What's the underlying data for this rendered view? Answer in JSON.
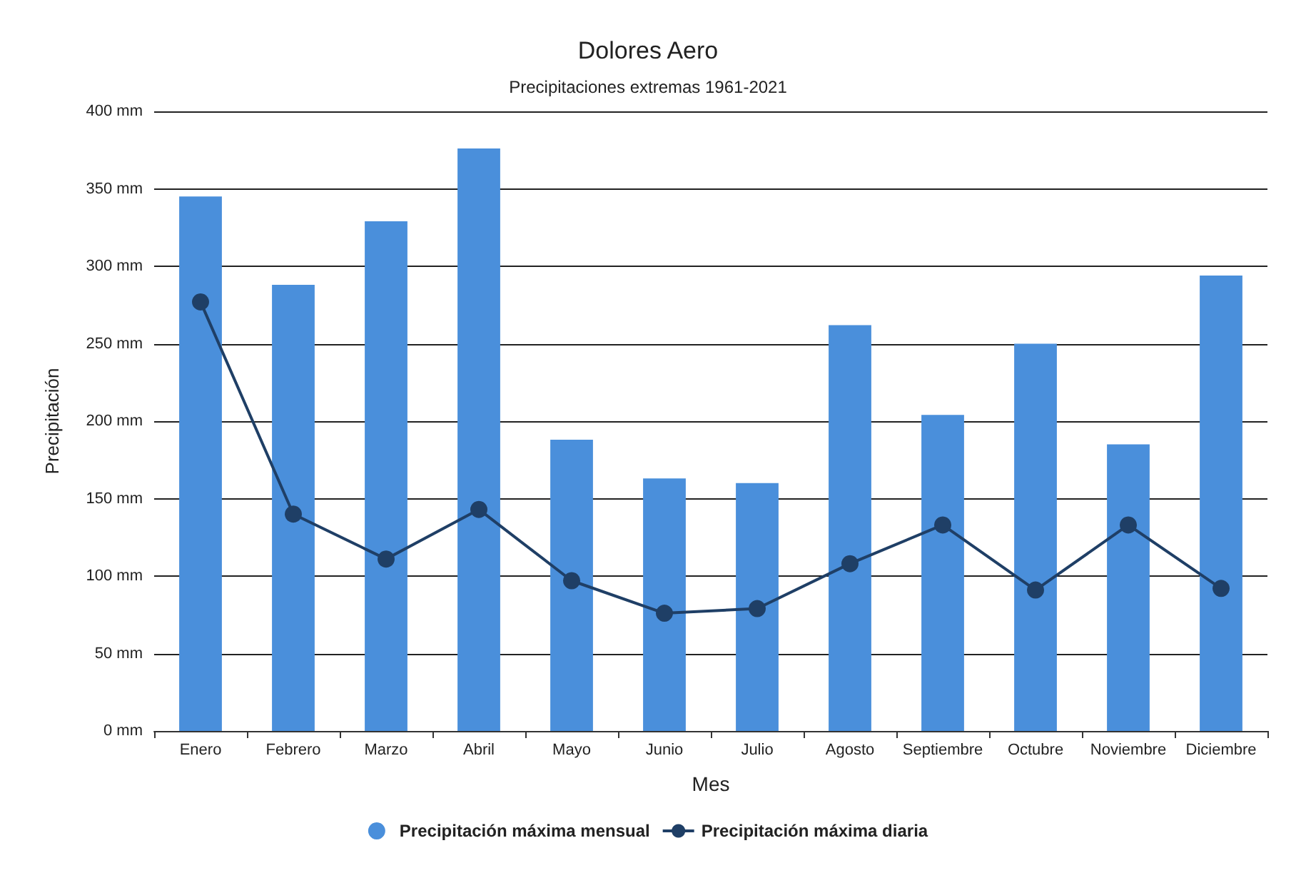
{
  "chart_data": {
    "type": "bar",
    "title": "Dolores Aero",
    "subtitle": "Precipitaciones extremas 1961-2021",
    "xlabel": "Mes",
    "ylabel": "Precipitación",
    "categories": [
      "Enero",
      "Febrero",
      "Marzo",
      "Abril",
      "Mayo",
      "Junio",
      "Julio",
      "Agosto",
      "Septiembre",
      "Octubre",
      "Noviembre",
      "Diciembre"
    ],
    "series": [
      {
        "name": "Precipitación máxima mensual",
        "color": "#4a8fdb",
        "values": [
          345,
          288,
          329,
          376,
          188,
          163,
          160,
          262,
          204,
          250,
          185,
          294
        ]
      },
      {
        "name": "Precipitación máxima diaria",
        "type": "line",
        "color": "#1f3f66",
        "values": [
          277,
          140,
          111,
          143,
          97,
          76,
          79,
          108,
          133,
          91,
          133,
          92
        ]
      }
    ],
    "ylim": [
      0,
      400
    ],
    "yticks": [
      {
        "value": 0,
        "label": "0 mm"
      },
      {
        "value": 50,
        "label": "50 mm"
      },
      {
        "value": 100,
        "label": "100 mm"
      },
      {
        "value": 150,
        "label": "150 mm"
      },
      {
        "value": 200,
        "label": "200 mm"
      },
      {
        "value": 250,
        "label": "250 mm"
      },
      {
        "value": 300,
        "label": "300 mm"
      },
      {
        "value": 350,
        "label": "350 mm"
      },
      {
        "value": 400,
        "label": "400 mm"
      }
    ],
    "grid": "y",
    "legend": "bottom",
    "marker": "circle",
    "line_style": "solid"
  }
}
